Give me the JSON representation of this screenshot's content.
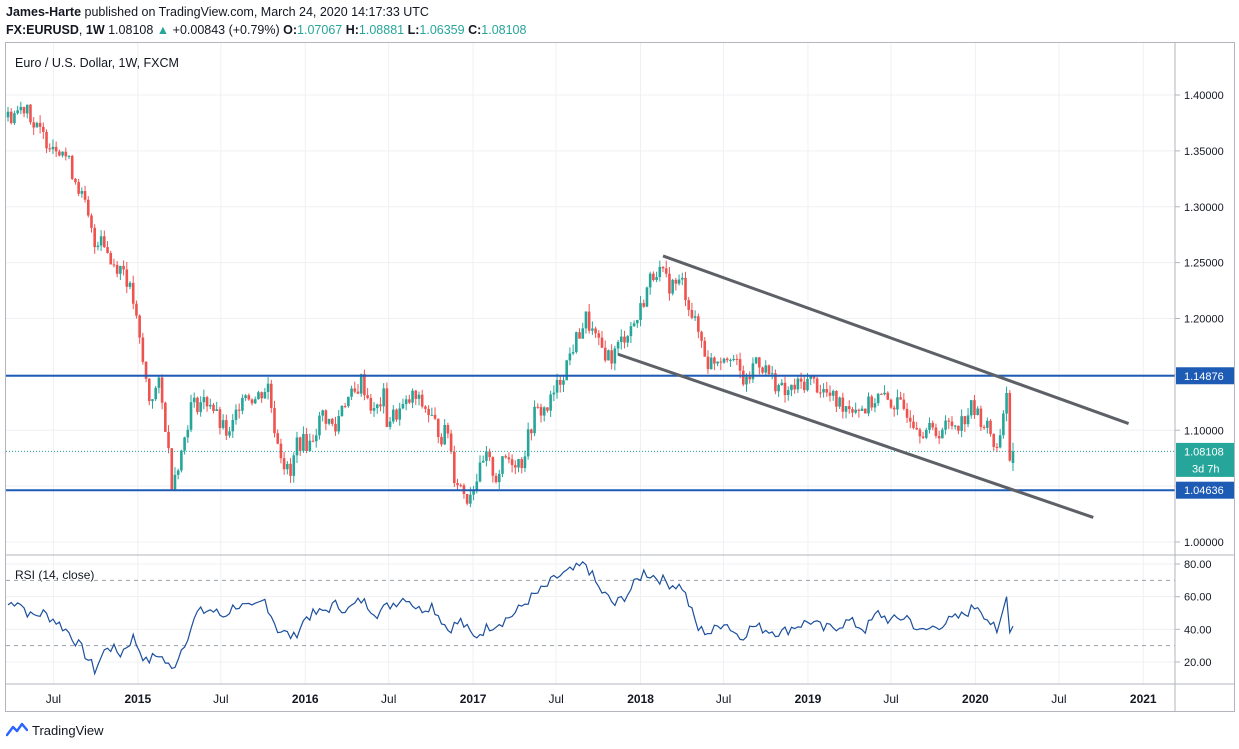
{
  "header": {
    "author": "James-Harte",
    "published_text": " published on TradingView.com, March 24, 2020 14:17:33 UTC",
    "symbol": "FX:EURUSD",
    "interval": "1W",
    "last": "1.08108",
    "change": "+0.00843 (+0.79%)",
    "open_label": "O:",
    "open": "1.07067",
    "high_label": "H:",
    "high": "1.08881",
    "low_label": "L:",
    "low": "1.06359",
    "close_label": "C:",
    "close": "1.08108"
  },
  "chart_title": "Euro / U.S. Dollar, 1W, FXCM",
  "rsi_label": "RSI (14, close)",
  "price_badges": {
    "resistance": "1.14876",
    "last": "1.08108",
    "countdown": "3d 7h",
    "support": "1.04636"
  },
  "footer": {
    "brand": "TradingView"
  },
  "colors": {
    "up": "#26a69a",
    "down": "#ef5350",
    "level_line": "#1e5bb5",
    "trend_line": "#5d6066",
    "rsi_line": "#1c4f9c",
    "last_badge": "#26a69a"
  },
  "chart_data": [
    {
      "type": "candlestick",
      "title": "Euro / U.S. Dollar, 1W, FXCM",
      "x_ticks": [
        "Jul",
        "2015",
        "Jul",
        "2016",
        "Jul",
        "2017",
        "Jul",
        "2018",
        "Jul",
        "2019",
        "Jul",
        "2020",
        "Jul",
        "2021"
      ],
      "y_ticks": [
        1.0,
        1.05,
        1.1,
        1.15,
        1.2,
        1.25,
        1.3,
        1.35,
        1.4
      ],
      "ylim": [
        0.985,
        1.44
      ],
      "close_path": [
        [
          "2014-03-24",
          1.38
        ],
        [
          "2014-05-05",
          1.392
        ],
        [
          "2014-05-19",
          1.372
        ],
        [
          "2014-06-16",
          1.36
        ],
        [
          "2014-07-21",
          1.352
        ],
        [
          "2014-08-25",
          1.318
        ],
        [
          "2014-09-08",
          1.3
        ],
        [
          "2014-09-29",
          1.265
        ],
        [
          "2014-10-13",
          1.278
        ],
        [
          "2014-11-03",
          1.25
        ],
        [
          "2014-12-01",
          1.245
        ],
        [
          "2014-12-22",
          1.215
        ],
        [
          "2015-01-12",
          1.16
        ],
        [
          "2015-01-26",
          1.128
        ],
        [
          "2015-02-16",
          1.14
        ],
        [
          "2015-03-02",
          1.105
        ],
        [
          "2015-03-16",
          1.055
        ],
        [
          "2015-04-06",
          1.08
        ],
        [
          "2015-04-27",
          1.122
        ],
        [
          "2015-05-18",
          1.125
        ],
        [
          "2015-06-08",
          1.126
        ],
        [
          "2015-06-29",
          1.105
        ],
        [
          "2015-07-20",
          1.094
        ],
        [
          "2015-08-17",
          1.135
        ],
        [
          "2015-09-14",
          1.128
        ],
        [
          "2015-10-12",
          1.14
        ],
        [
          "2015-10-26",
          1.103
        ],
        [
          "2015-11-16",
          1.07
        ],
        [
          "2015-11-30",
          1.058
        ],
        [
          "2015-12-14",
          1.09
        ],
        [
          "2016-01-11",
          1.088
        ],
        [
          "2016-02-08",
          1.115
        ],
        [
          "2016-03-07",
          1.1
        ],
        [
          "2016-03-21",
          1.125
        ],
        [
          "2016-04-18",
          1.132
        ],
        [
          "2016-05-02",
          1.145
        ],
        [
          "2016-05-30",
          1.115
        ],
        [
          "2016-06-20",
          1.13
        ],
        [
          "2016-06-27",
          1.108
        ],
        [
          "2016-08-08",
          1.122
        ],
        [
          "2016-08-22",
          1.13
        ],
        [
          "2016-09-19",
          1.12
        ],
        [
          "2016-10-24",
          1.095
        ],
        [
          "2016-11-07",
          1.1
        ],
        [
          "2016-11-21",
          1.06
        ],
        [
          "2016-12-19",
          1.04
        ],
        [
          "2017-01-02",
          1.052
        ],
        [
          "2017-01-30",
          1.075
        ],
        [
          "2017-02-20",
          1.058
        ],
        [
          "2017-03-13",
          1.075
        ],
        [
          "2017-04-17",
          1.072
        ],
        [
          "2017-05-15",
          1.115
        ],
        [
          "2017-06-12",
          1.12
        ],
        [
          "2017-07-10",
          1.145
        ],
        [
          "2017-08-07",
          1.175
        ],
        [
          "2017-09-04",
          1.2
        ],
        [
          "2017-10-02",
          1.175
        ],
        [
          "2017-10-30",
          1.165
        ],
        [
          "2017-11-27",
          1.185
        ],
        [
          "2017-12-25",
          1.2
        ],
        [
          "2018-01-22",
          1.235
        ],
        [
          "2018-02-05",
          1.245
        ],
        [
          "2018-03-05",
          1.23
        ],
        [
          "2018-04-02",
          1.232
        ],
        [
          "2018-04-30",
          1.195
        ],
        [
          "2018-05-14",
          1.18
        ],
        [
          "2018-05-28",
          1.16
        ],
        [
          "2018-06-18",
          1.165
        ],
        [
          "2018-07-16",
          1.17
        ],
        [
          "2018-08-06",
          1.15
        ],
        [
          "2018-08-20",
          1.14
        ],
        [
          "2018-09-10",
          1.165
        ],
        [
          "2018-10-08",
          1.15
        ],
        [
          "2018-11-12",
          1.132
        ],
        [
          "2018-12-10",
          1.14
        ],
        [
          "2019-01-07",
          1.145
        ],
        [
          "2019-02-04",
          1.135
        ],
        [
          "2019-03-04",
          1.125
        ],
        [
          "2019-04-01",
          1.122
        ],
        [
          "2019-05-06",
          1.12
        ],
        [
          "2019-06-03",
          1.13
        ],
        [
          "2019-07-01",
          1.125
        ],
        [
          "2019-08-05",
          1.118
        ],
        [
          "2019-09-02",
          1.102
        ],
        [
          "2019-10-07",
          1.098
        ],
        [
          "2019-11-04",
          1.105
        ],
        [
          "2019-12-02",
          1.108
        ],
        [
          "2019-12-23",
          1.12
        ],
        [
          "2020-01-13",
          1.11
        ],
        [
          "2020-02-03",
          1.098
        ],
        [
          "2020-02-17",
          1.082
        ],
        [
          "2020-03-09",
          1.135
        ],
        [
          "2020-03-16",
          1.068
        ],
        [
          "2020-03-23",
          1.081
        ]
      ],
      "horizontal_levels": [
        1.14876,
        1.04636
      ],
      "last_price": 1.08108,
      "trend_lines": [
        {
          "from": [
            "2018-02-19",
            1.256
          ],
          "to": [
            "2020-11-30",
            1.106
          ]
        },
        {
          "from": [
            "2017-11-13",
            1.168
          ],
          "to": [
            "2020-09-14",
            1.022
          ]
        }
      ]
    },
    {
      "type": "line",
      "title": "RSI (14, close)",
      "y_ticks": [
        20.0,
        40.0,
        60.0,
        80.0
      ],
      "ylim": [
        10,
        85
      ],
      "reference_levels": [
        70,
        30
      ],
      "series": [
        {
          "values": [
            [
              "2014-03-24",
              55
            ],
            [
              "2014-04-14",
              58
            ],
            [
              "2014-05-12",
              48
            ],
            [
              "2014-06-09",
              50
            ],
            [
              "2014-07-07",
              45
            ],
            [
              "2014-08-04",
              38
            ],
            [
              "2014-09-01",
              28
            ],
            [
              "2014-09-29",
              15
            ],
            [
              "2014-10-27",
              30
            ],
            [
              "2014-11-24",
              25
            ],
            [
              "2014-12-22",
              35
            ],
            [
              "2015-01-19",
              20
            ],
            [
              "2015-02-16",
              25
            ],
            [
              "2015-03-16",
              15
            ],
            [
              "2015-04-13",
              32
            ],
            [
              "2015-05-11",
              50
            ],
            [
              "2015-06-08",
              52
            ],
            [
              "2015-07-06",
              48
            ],
            [
              "2015-08-03",
              55
            ],
            [
              "2015-09-07",
              52
            ],
            [
              "2015-10-05",
              58
            ],
            [
              "2015-11-02",
              40
            ],
            [
              "2015-12-07",
              35
            ],
            [
              "2016-01-04",
              48
            ],
            [
              "2016-02-01",
              50
            ],
            [
              "2016-03-07",
              55
            ],
            [
              "2016-04-04",
              52
            ],
            [
              "2016-05-02",
              58
            ],
            [
              "2016-06-06",
              50
            ],
            [
              "2016-07-04",
              55
            ],
            [
              "2016-08-08",
              60
            ],
            [
              "2016-09-05",
              52
            ],
            [
              "2016-10-03",
              55
            ],
            [
              "2016-11-07",
              40
            ],
            [
              "2016-12-05",
              45
            ],
            [
              "2017-01-02",
              35
            ],
            [
              "2017-02-06",
              42
            ],
            [
              "2017-03-06",
              45
            ],
            [
              "2017-04-03",
              50
            ],
            [
              "2017-05-01",
              58
            ],
            [
              "2017-06-05",
              65
            ],
            [
              "2017-07-03",
              72
            ],
            [
              "2017-08-07",
              76
            ],
            [
              "2017-09-04",
              80
            ],
            [
              "2017-10-02",
              65
            ],
            [
              "2017-11-06",
              55
            ],
            [
              "2017-12-04",
              62
            ],
            [
              "2018-01-08",
              75
            ],
            [
              "2018-02-05",
              72
            ],
            [
              "2018-03-05",
              68
            ],
            [
              "2018-04-02",
              66
            ],
            [
              "2018-05-07",
              40
            ],
            [
              "2018-06-04",
              38
            ],
            [
              "2018-07-02",
              45
            ],
            [
              "2018-08-06",
              35
            ],
            [
              "2018-09-03",
              42
            ],
            [
              "2018-10-01",
              40
            ],
            [
              "2018-11-05",
              38
            ],
            [
              "2018-12-03",
              42
            ],
            [
              "2019-01-07",
              45
            ],
            [
              "2019-02-04",
              40
            ],
            [
              "2019-03-04",
              42
            ],
            [
              "2019-04-01",
              45
            ],
            [
              "2019-05-06",
              40
            ],
            [
              "2019-06-03",
              50
            ],
            [
              "2019-07-01",
              45
            ],
            [
              "2019-08-05",
              48
            ],
            [
              "2019-09-02",
              38
            ],
            [
              "2019-10-07",
              42
            ],
            [
              "2019-11-04",
              45
            ],
            [
              "2019-12-02",
              48
            ],
            [
              "2020-01-06",
              55
            ],
            [
              "2020-02-03",
              44
            ],
            [
              "2020-02-17",
              38
            ],
            [
              "2020-03-09",
              60
            ],
            [
              "2020-03-16",
              38
            ],
            [
              "2020-03-23",
              42
            ]
          ]
        }
      ]
    }
  ]
}
